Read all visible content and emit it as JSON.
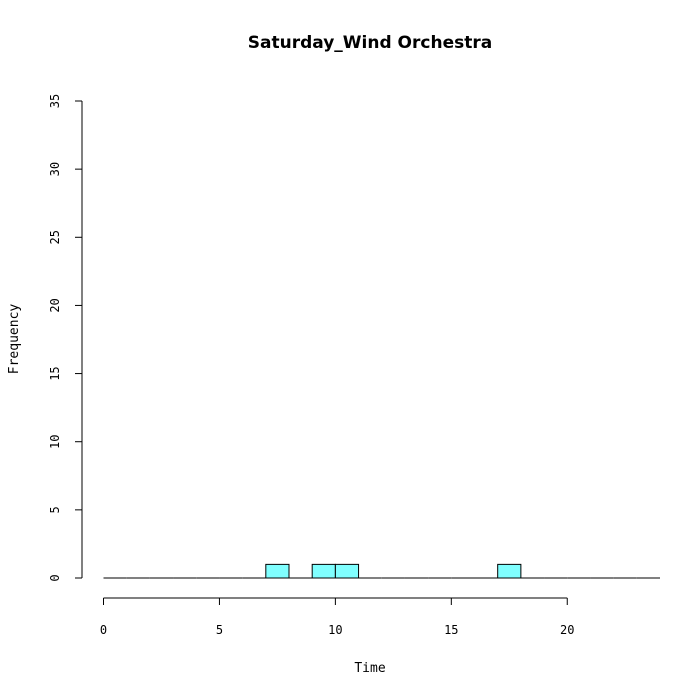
{
  "chart_data": {
    "type": "bar",
    "title": "Saturday_Wind Orchestra",
    "xlabel": "Time",
    "ylabel": "Frequency",
    "xlim": [
      0,
      24
    ],
    "ylim": [
      0,
      35
    ],
    "x_ticks": [
      0,
      5,
      10,
      15,
      20
    ],
    "y_ticks": [
      0,
      5,
      10,
      15,
      20,
      25,
      30,
      35
    ],
    "bins": [
      {
        "start": 0,
        "end": 1,
        "count": 0
      },
      {
        "start": 1,
        "end": 2,
        "count": 0
      },
      {
        "start": 2,
        "end": 3,
        "count": 0
      },
      {
        "start": 3,
        "end": 4,
        "count": 0
      },
      {
        "start": 4,
        "end": 5,
        "count": 0
      },
      {
        "start": 5,
        "end": 6,
        "count": 0
      },
      {
        "start": 6,
        "end": 7,
        "count": 0
      },
      {
        "start": 7,
        "end": 8,
        "count": 1
      },
      {
        "start": 8,
        "end": 9,
        "count": 0
      },
      {
        "start": 9,
        "end": 10,
        "count": 1
      },
      {
        "start": 10,
        "end": 11,
        "count": 1
      },
      {
        "start": 11,
        "end": 12,
        "count": 0
      },
      {
        "start": 12,
        "end": 13,
        "count": 0
      },
      {
        "start": 13,
        "end": 14,
        "count": 0
      },
      {
        "start": 14,
        "end": 15,
        "count": 0
      },
      {
        "start": 15,
        "end": 16,
        "count": 0
      },
      {
        "start": 16,
        "end": 17,
        "count": 0
      },
      {
        "start": 17,
        "end": 18,
        "count": 1
      },
      {
        "start": 18,
        "end": 19,
        "count": 0
      },
      {
        "start": 19,
        "end": 20,
        "count": 0
      },
      {
        "start": 20,
        "end": 21,
        "count": 0
      },
      {
        "start": 21,
        "end": 22,
        "count": 0
      },
      {
        "start": 22,
        "end": 23,
        "count": 0
      },
      {
        "start": 23,
        "end": 24,
        "count": 0
      }
    ],
    "bar_color": "#80ffff",
    "bar_border_color": "#000000",
    "grid": false,
    "legend": "none"
  }
}
